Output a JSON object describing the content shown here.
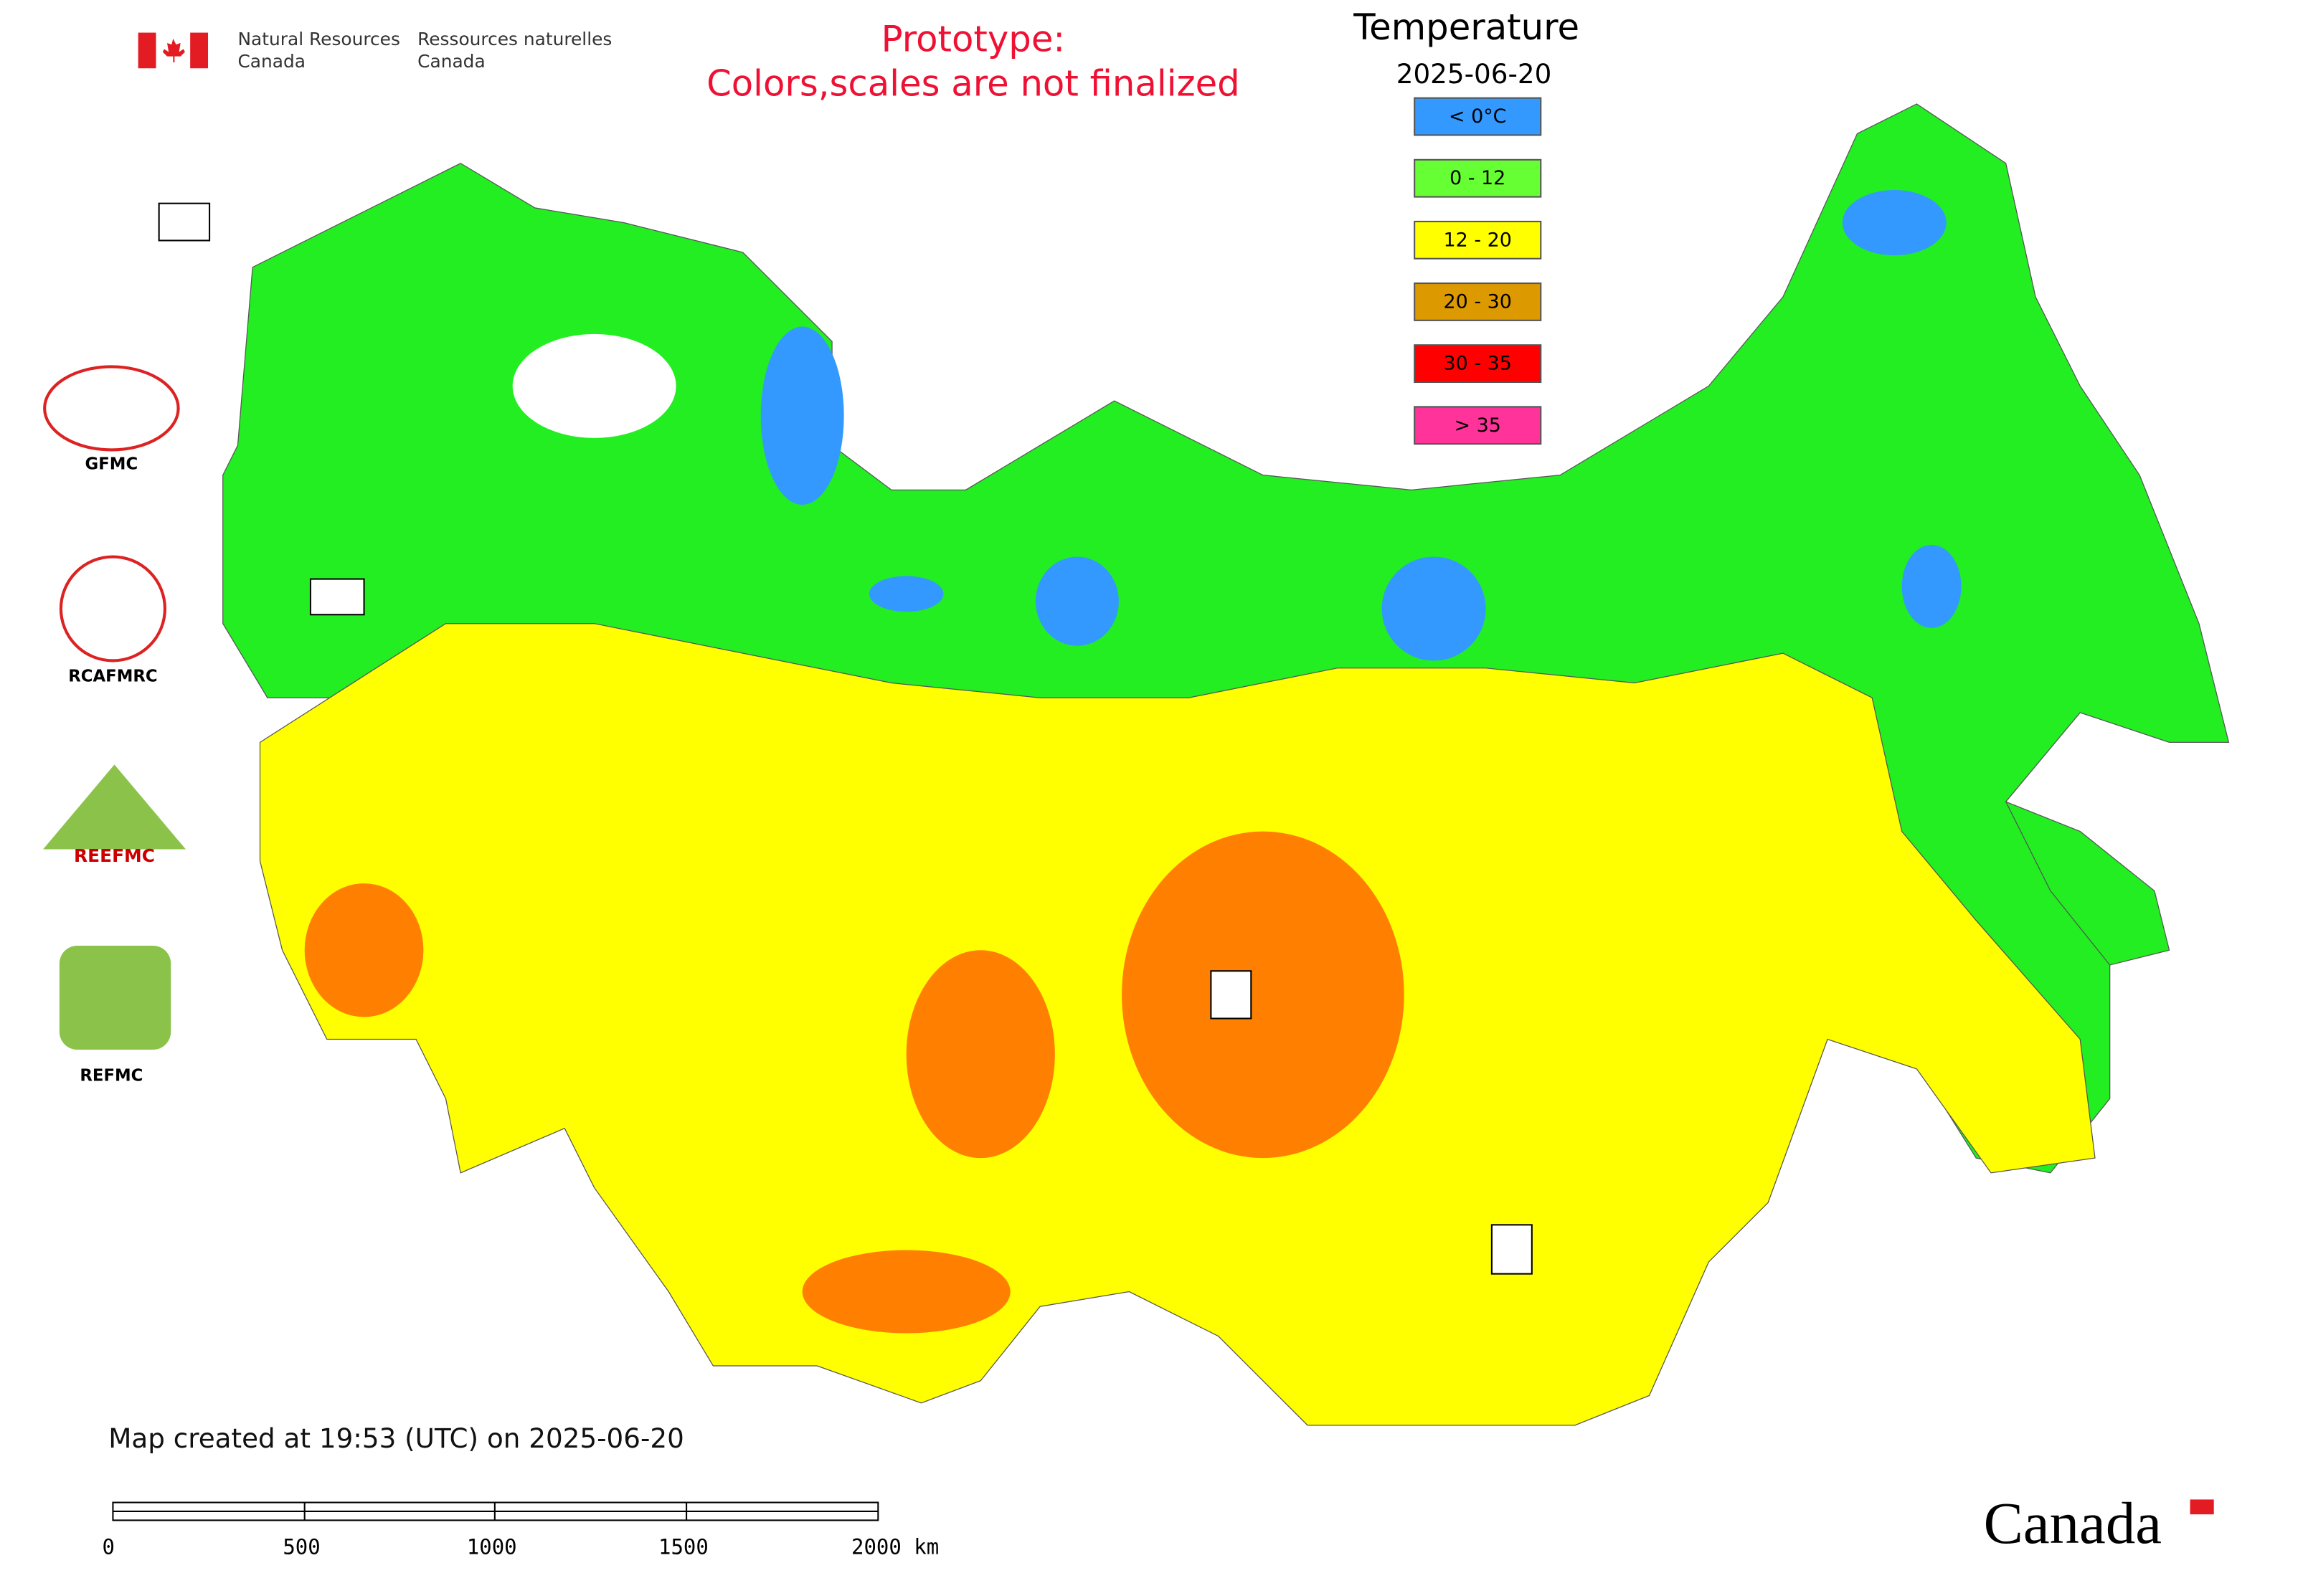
{
  "header": {
    "department_en": [
      "Natural Resources",
      "Canada"
    ],
    "department_fr": [
      "Ressources naturelles",
      "Canada"
    ],
    "notice": [
      "Prototype:",
      "Colors,scales are not finalized"
    ]
  },
  "legend": {
    "title": "Temperature",
    "date": "2025-06-20",
    "items": [
      {
        "label": "< 0°C",
        "color": "#3399ff"
      },
      {
        "label": "0 - 12",
        "color": "#66ff33"
      },
      {
        "label": "12 - 20",
        "color": "#ffff00"
      },
      {
        "label": "20 - 30",
        "color": "#dd9900"
      },
      {
        "label": "30 - 35",
        "color": "#ff0000"
      },
      {
        "label": "> 35",
        "color": "#ff3399"
      }
    ]
  },
  "logos": [
    "GFMC",
    "RCAFMRC",
    "REEFMC",
    "REFMC"
  ],
  "footer": {
    "created": "Map created at 19:53 (UTC) on 2025-06-20",
    "scale_labels": [
      "0",
      "500",
      "1000",
      "1500",
      "2000 km"
    ],
    "wordmark": "Canada"
  }
}
